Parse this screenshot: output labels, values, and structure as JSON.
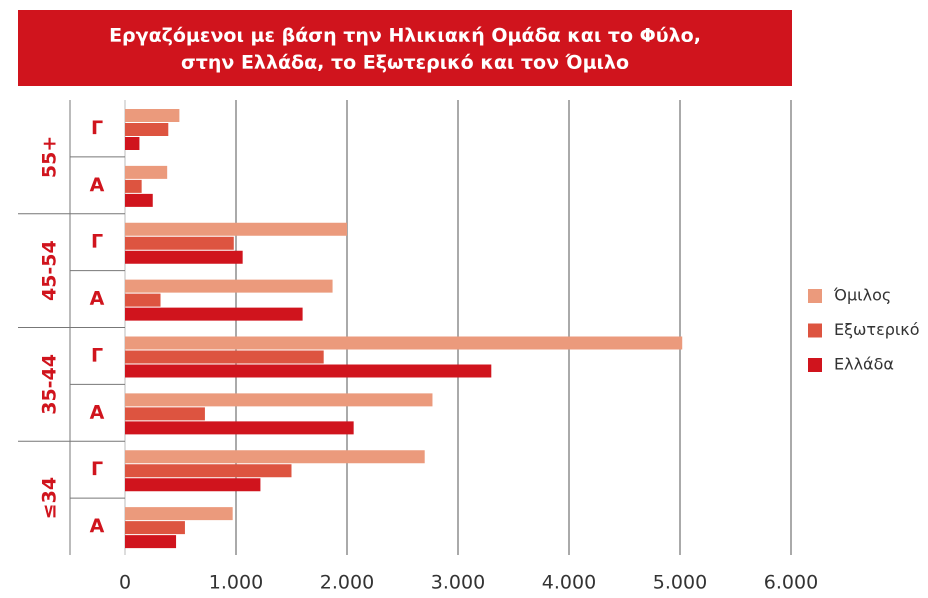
{
  "chart_data": {
    "type": "bar",
    "orientation": "horizontal",
    "title": [
      "Εργαζόμενοι με βάση την Ηλικιακή Ομάδα και το Φύλο,",
      "στην Ελλάδα, το Εξωτερικό και τον Όμιλο"
    ],
    "category_groups": [
      "55+",
      "45-54",
      "35-44",
      "≤34"
    ],
    "categories": [
      "Γ",
      "Α",
      "Γ",
      "Α",
      "Γ",
      "Α",
      "Γ",
      "Α"
    ],
    "series": [
      {
        "name": "Όμιλος",
        "color": "#eb9a7c",
        "values": [
          490,
          380,
          2000,
          1870,
          5020,
          2770,
          2700,
          970
        ]
      },
      {
        "name": "Εξωτερικό",
        "color": "#dd5440",
        "values": [
          390,
          150,
          980,
          320,
          1790,
          720,
          1500,
          540
        ]
      },
      {
        "name": "Ελλάδα",
        "color": "#d0141d",
        "values": [
          130,
          250,
          1060,
          1600,
          3300,
          2060,
          1220,
          460
        ]
      }
    ],
    "xlim": [
      0,
      6000
    ],
    "xticks": [
      0,
      {
        "value": 1000,
        "label": "1.000"
      },
      {
        "value": 2000,
        "label": "2.000"
      },
      {
        "value": 3000,
        "label": "3.000"
      },
      {
        "value": 4000,
        "label": "4.000"
      },
      {
        "value": 5000,
        "label": "5.000"
      },
      {
        "value": 6000,
        "label": "6.000"
      }
    ],
    "grid": true,
    "legend": "right"
  }
}
